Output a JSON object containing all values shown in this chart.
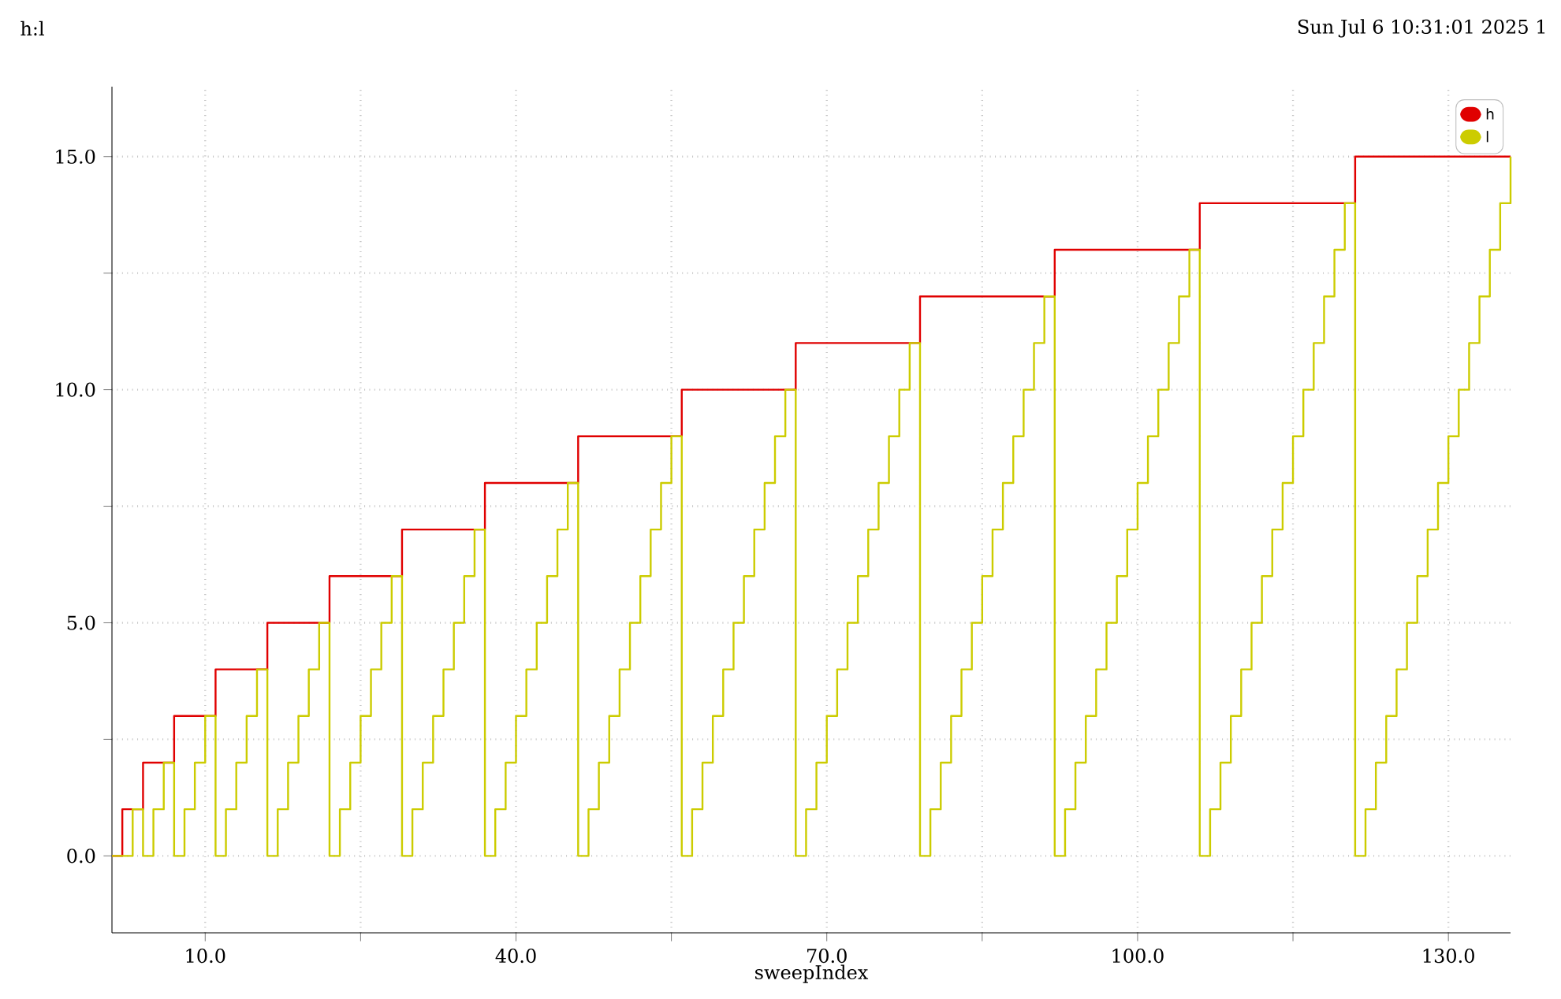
{
  "chart_data": {
    "type": "step",
    "title": "h:l",
    "xlabel": "sweepIndex",
    "annotations": [
      "Sun Jul 6 10:31:01 2025  1"
    ],
    "x": [
      1,
      2,
      3,
      4,
      5,
      6,
      7,
      8,
      9,
      10,
      11,
      12,
      13,
      14,
      15,
      16,
      17,
      18,
      19,
      20,
      21,
      22,
      23,
      24,
      25,
      26,
      27,
      28,
      29,
      30,
      31,
      32,
      33,
      34,
      35,
      36,
      37,
      38,
      39,
      40,
      41,
      42,
      43,
      44,
      45,
      46,
      47,
      48,
      49,
      50,
      51,
      52,
      53,
      54,
      55,
      56,
      57,
      58,
      59,
      60,
      61,
      62,
      63,
      64,
      65,
      66,
      67,
      68,
      69,
      70,
      71,
      72,
      73,
      74,
      75,
      76,
      77,
      78,
      79,
      80,
      81,
      82,
      83,
      84,
      85,
      86,
      87,
      88,
      89,
      90,
      91,
      92,
      93,
      94,
      95,
      96,
      97,
      98,
      99,
      100,
      101,
      102,
      103,
      104,
      105,
      106,
      107,
      108,
      109,
      110,
      111,
      112,
      113,
      114,
      115,
      116,
      117,
      118,
      119,
      120,
      121,
      122,
      123,
      124,
      125,
      126,
      127,
      128,
      129,
      130,
      131,
      132,
      133,
      134,
      135,
      136
    ],
    "series": [
      {
        "name": "h",
        "color": "#e00000",
        "values": [
          0,
          1,
          1,
          2,
          2,
          2,
          3,
          3,
          3,
          3,
          4,
          4,
          4,
          4,
          4,
          5,
          5,
          5,
          5,
          5,
          5,
          6,
          6,
          6,
          6,
          6,
          6,
          6,
          7,
          7,
          7,
          7,
          7,
          7,
          7,
          7,
          8,
          8,
          8,
          8,
          8,
          8,
          8,
          8,
          8,
          9,
          9,
          9,
          9,
          9,
          9,
          9,
          9,
          9,
          9,
          10,
          10,
          10,
          10,
          10,
          10,
          10,
          10,
          10,
          10,
          10,
          11,
          11,
          11,
          11,
          11,
          11,
          11,
          11,
          11,
          11,
          11,
          11,
          12,
          12,
          12,
          12,
          12,
          12,
          12,
          12,
          12,
          12,
          12,
          12,
          12,
          13,
          13,
          13,
          13,
          13,
          13,
          13,
          13,
          13,
          13,
          13,
          13,
          13,
          13,
          14,
          14,
          14,
          14,
          14,
          14,
          14,
          14,
          14,
          14,
          14,
          14,
          14,
          14,
          14,
          15,
          15,
          15,
          15,
          15,
          15,
          15,
          15,
          15,
          15,
          15,
          15,
          15,
          15,
          15,
          15
        ]
      },
      {
        "name": "l",
        "color": "#cccc00",
        "values": [
          0,
          0,
          1,
          0,
          1,
          2,
          0,
          1,
          2,
          3,
          0,
          1,
          2,
          3,
          4,
          0,
          1,
          2,
          3,
          4,
          5,
          0,
          1,
          2,
          3,
          4,
          5,
          6,
          0,
          1,
          2,
          3,
          4,
          5,
          6,
          7,
          0,
          1,
          2,
          3,
          4,
          5,
          6,
          7,
          8,
          0,
          1,
          2,
          3,
          4,
          5,
          6,
          7,
          8,
          9,
          0,
          1,
          2,
          3,
          4,
          5,
          6,
          7,
          8,
          9,
          10,
          0,
          1,
          2,
          3,
          4,
          5,
          6,
          7,
          8,
          9,
          10,
          11,
          0,
          1,
          2,
          3,
          4,
          5,
          6,
          7,
          8,
          9,
          10,
          11,
          12,
          0,
          1,
          2,
          3,
          4,
          5,
          6,
          7,
          8,
          9,
          10,
          11,
          12,
          13,
          0,
          1,
          2,
          3,
          4,
          5,
          6,
          7,
          8,
          9,
          10,
          11,
          12,
          13,
          14,
          0,
          1,
          2,
          3,
          4,
          5,
          6,
          7,
          8,
          9,
          10,
          11,
          12,
          13,
          14,
          15
        ]
      }
    ],
    "xlim": [
      1,
      136
    ],
    "ylim": [
      -1.65,
      16.5
    ],
    "xticks": [
      {
        "value": 10,
        "label": "10.0"
      },
      {
        "value": 25,
        "label": null
      },
      {
        "value": 40,
        "label": "40.0"
      },
      {
        "value": 55,
        "label": null
      },
      {
        "value": 70,
        "label": "70.0"
      },
      {
        "value": 85,
        "label": null
      },
      {
        "value": 100,
        "label": "100.0"
      },
      {
        "value": 115,
        "label": null
      },
      {
        "value": 130,
        "label": "130.0"
      }
    ],
    "yticks": [
      {
        "value": 0,
        "label": "0.0"
      },
      {
        "value": 2.5,
        "label": null
      },
      {
        "value": 5,
        "label": "5.0"
      },
      {
        "value": 7.5,
        "label": null
      },
      {
        "value": 10,
        "label": "10.0"
      },
      {
        "value": 12.5,
        "label": null
      },
      {
        "value": 15,
        "label": "15.0"
      }
    ],
    "grid": true,
    "legend": "top right"
  }
}
